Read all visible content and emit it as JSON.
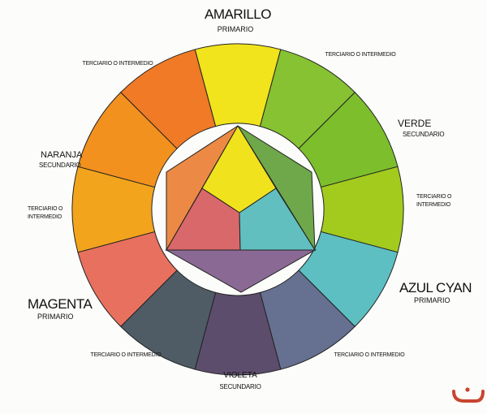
{
  "labels": {
    "amarillo": "AMARILLO",
    "amarillo_sub": "PRIMARIO",
    "verde": "VERDE",
    "verde_sub": "SECUNDARIO",
    "azul": "AZUL CYAN",
    "azul_sub": "PRIMARIO",
    "violeta": "VIOLETA",
    "violeta_sub": "SECUNDARIO",
    "magenta": "MAGENTA",
    "magenta_sub": "PRIMARIO",
    "naranja": "NARANJA",
    "naranja_sub": "SECUNDARIO",
    "terciario_top_left": "TERCIARIO O INTERMEDIO",
    "terciario_top_right": "TERCIARIO O INTERMEDIO",
    "terciario_right_1": "TERCIARIO O",
    "terciario_right_2": "INTERMEDIO",
    "terciario_bottom_right": "TERCIARIO O INTERMEDIO",
    "terciario_bottom_left": "TERCIARIO O INTERMEDIO",
    "terciario_left_1": "TERCIARIO O",
    "terciario_left_2": "INTERMEDIO"
  },
  "wheel_colors": [
    "#f1e31c",
    "#86c232",
    "#7cbe2c",
    "#a2cb1e",
    "#5dbfc2",
    "#667090",
    "#5d4d6d",
    "#4f5c66",
    "#e8705e",
    "#f3a41d",
    "#f3911f",
    "#f07a25"
  ],
  "inner_colors": {
    "yellow": "#f1e21e",
    "red": "#d9686a",
    "cyan": "#62bfc0",
    "orange": "#ec8a45",
    "green": "#6ea84a",
    "violet": "#8a6a94"
  },
  "icons": {
    "corner": "smile-icon"
  },
  "accent": "#c8452e"
}
